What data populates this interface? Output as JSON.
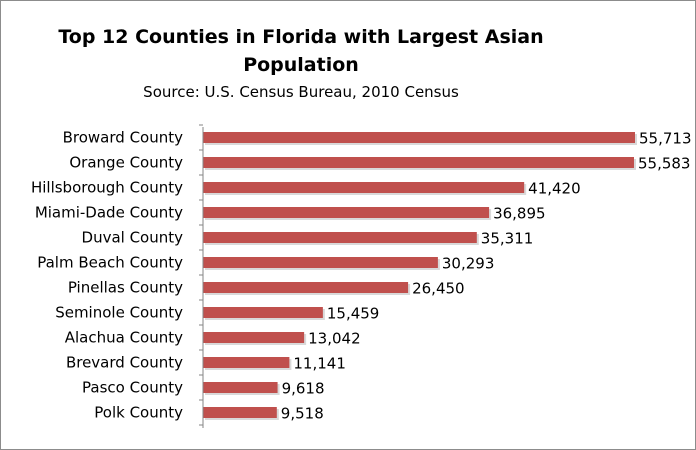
{
  "chart_data": {
    "type": "bar",
    "orientation": "horizontal",
    "title": "Top 12 Counties in Florida with Largest Asian Population",
    "subtitle": "Source: U.S. Census Bureau, 2010 Census",
    "categories": [
      "Broward County",
      "Orange County",
      "Hillsborough County",
      "Miami-Dade County",
      "Duval County",
      "Palm Beach County",
      "Pinellas County",
      "Seminole County",
      "Alachua County",
      "Brevard County",
      "Pasco County",
      "Polk County"
    ],
    "values": [
      55713,
      55583,
      41420,
      36895,
      35311,
      30293,
      26450,
      15459,
      13042,
      11141,
      9618,
      9518
    ],
    "value_labels": [
      "55,713",
      "55,583",
      "41,420",
      "36,895",
      "35,311",
      "30,293",
      "26,450",
      "15,459",
      "13,042",
      "11,141",
      "9,618",
      "9,518"
    ],
    "xlim": [
      0,
      60000
    ],
    "grid": false,
    "bar_color": "#c0504d",
    "axis_color": "#868686"
  }
}
